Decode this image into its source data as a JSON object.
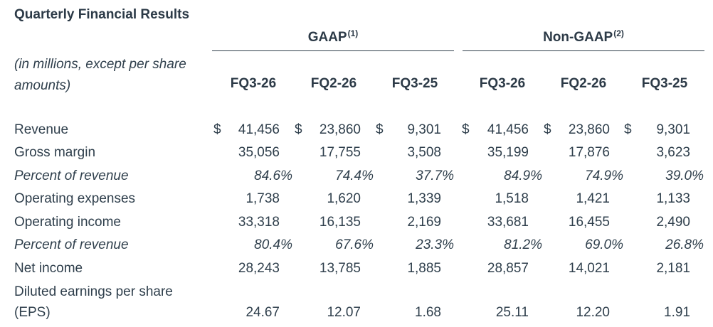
{
  "title": "Quarterly Financial Results",
  "groups": {
    "gaap": {
      "label": "GAAP",
      "note": "(1)"
    },
    "nongaap": {
      "label": "Non-GAAP",
      "note": "(2)"
    }
  },
  "units_label": [
    "(in millions, except per share",
    "amounts)"
  ],
  "periods": [
    "FQ3-26",
    "FQ2-26",
    "FQ3-25",
    "FQ3-26",
    "FQ2-26",
    "FQ3-25"
  ],
  "currency_symbol": "$",
  "rows": [
    {
      "label": "Revenue",
      "italic": false,
      "dollar": true,
      "values": [
        "41,456",
        "23,860",
        "9,301",
        "41,456",
        "23,860",
        "9,301"
      ]
    },
    {
      "label": "Gross margin",
      "italic": false,
      "dollar": false,
      "values": [
        "35,056",
        "17,755",
        "3,508",
        "35,199",
        "17,876",
        "3,623"
      ]
    },
    {
      "label": "Percent of revenue",
      "italic": true,
      "dollar": false,
      "values": [
        "84.6%",
        "74.4%",
        "37.7%",
        "84.9%",
        "74.9%",
        "39.0%"
      ]
    },
    {
      "label": "Operating expenses",
      "italic": false,
      "dollar": false,
      "values": [
        "1,738",
        "1,620",
        "1,339",
        "1,518",
        "1,421",
        "1,133"
      ]
    },
    {
      "label": "Operating income",
      "italic": false,
      "dollar": false,
      "values": [
        "33,318",
        "16,135",
        "2,169",
        "33,681",
        "16,455",
        "2,490"
      ]
    },
    {
      "label": "Percent of revenue",
      "italic": true,
      "dollar": false,
      "values": [
        "80.4%",
        "67.6%",
        "23.3%",
        "81.2%",
        "69.0%",
        "26.8%"
      ]
    },
    {
      "label": "Net income",
      "italic": false,
      "dollar": false,
      "values": [
        "28,243",
        "13,785",
        "1,885",
        "28,857",
        "14,021",
        "2,181"
      ]
    },
    {
      "label": "Diluted earnings per share",
      "label2": "(EPS)",
      "italic": false,
      "dollar": false,
      "values": [
        "24.67",
        "12.07",
        "1.68",
        "25.11",
        "12.20",
        "1.91"
      ]
    }
  ]
}
